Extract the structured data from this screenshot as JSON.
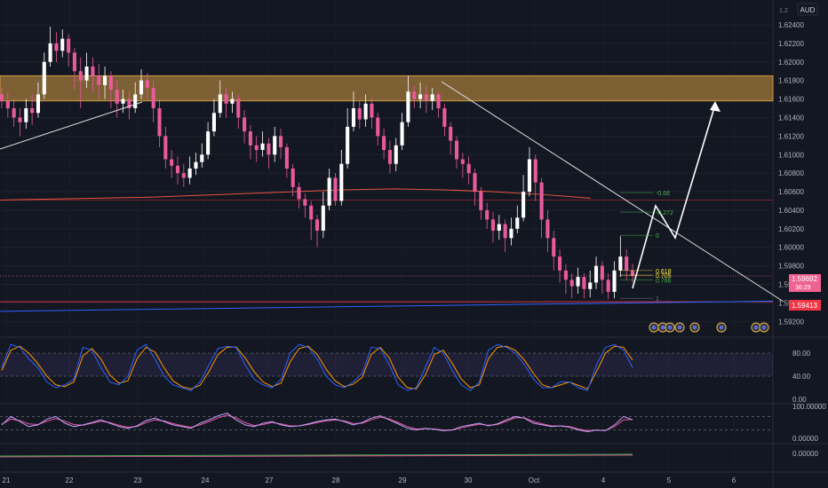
{
  "chart_data": {
    "type": "candlestick",
    "currency": "AUD",
    "price_scale": {
      "ylim": [
        1.5905,
        1.6262
      ],
      "ticks": [
        "1.62400",
        "1.62200",
        "1.62000",
        "1.61800",
        "1.61600",
        "1.61400",
        "1.61200",
        "1.61000",
        "1.60800",
        "1.60600",
        "1.60400",
        "1.60200",
        "1.60000",
        "1.59800",
        "1.59600",
        "1.59400",
        "1.59200"
      ],
      "top_label": "1.2"
    },
    "x_ticks": [
      "21",
      "22",
      "23",
      "24",
      "27",
      "28",
      "29",
      "30",
      "Oct",
      "4",
      "5",
      "6"
    ],
    "last_price": {
      "value": "1.59692",
      "countdown": "36:29",
      "color": "#f06292"
    },
    "support_label": {
      "value": "1.59413",
      "color": "#f23645"
    },
    "supply_zone": {
      "from": 1.6158,
      "to": 1.6185,
      "color": "#d39a42"
    },
    "moving_average": {
      "color": "#e9553f",
      "values": [
        1.6051,
        1.6052,
        1.6053,
        1.6054,
        1.6056,
        1.6058,
        1.606,
        1.6062,
        1.6063,
        1.6062,
        1.606,
        1.6057,
        1.6053
      ]
    },
    "fib_levels": [
      {
        "label": "-0.68",
        "price": 1.6059,
        "color": "#4caf50"
      },
      {
        "label": "-0.272",
        "price": 1.6038,
        "color": "#4caf50"
      },
      {
        "label": "0",
        "price": 1.6013,
        "color": "#4caf50"
      },
      {
        "label": "0.618",
        "price": 1.5975,
        "color": "#ffeb3b"
      },
      {
        "label": "0.705",
        "price": 1.597,
        "color": "#ffeb3b"
      },
      {
        "label": "0.786",
        "price": 1.5965,
        "color": "#4caf50"
      },
      {
        "label": "1",
        "price": 1.5945,
        "color": "#787b86"
      }
    ],
    "candles": [
      [
        1.6165,
        1.6158,
        1.6172,
        1.615
      ],
      [
        1.6158,
        1.615,
        1.6168,
        1.614
      ],
      [
        1.615,
        1.614,
        1.616,
        1.613
      ],
      [
        1.614,
        1.6135,
        1.615,
        1.612
      ],
      [
        1.6135,
        1.615,
        1.616,
        1.6128
      ],
      [
        1.615,
        1.6145,
        1.6165,
        1.6132
      ],
      [
        1.6145,
        1.6165,
        1.6178,
        1.614
      ],
      [
        1.6165,
        1.62,
        1.621,
        1.616
      ],
      [
        1.62,
        1.622,
        1.6238,
        1.6195
      ],
      [
        1.622,
        1.6212,
        1.6232,
        1.62
      ],
      [
        1.6212,
        1.6225,
        1.6235,
        1.6205
      ],
      [
        1.6225,
        1.621,
        1.623,
        1.6195
      ],
      [
        1.621,
        1.619,
        1.6215,
        1.617
      ],
      [
        1.619,
        1.618,
        1.6205,
        1.615
      ],
      [
        1.618,
        1.6195,
        1.621,
        1.6172
      ],
      [
        1.6195,
        1.6185,
        1.6205,
        1.6168
      ],
      [
        1.6185,
        1.6175,
        1.6198,
        1.616
      ],
      [
        1.6175,
        1.6185,
        1.6195,
        1.616
      ],
      [
        1.6185,
        1.617,
        1.619,
        1.615
      ],
      [
        1.617,
        1.6155,
        1.618,
        1.614
      ],
      [
        1.6155,
        1.616,
        1.617,
        1.6145
      ],
      [
        1.616,
        1.615,
        1.6168,
        1.6138
      ],
      [
        1.615,
        1.6165,
        1.6178,
        1.6145
      ],
      [
        1.6165,
        1.618,
        1.6192,
        1.616
      ],
      [
        1.618,
        1.6172,
        1.6188,
        1.616
      ],
      [
        1.6172,
        1.615,
        1.618,
        1.6135
      ],
      [
        1.615,
        1.612,
        1.616,
        1.6108
      ],
      [
        1.612,
        1.6095,
        1.613,
        1.6085
      ],
      [
        1.6095,
        1.6088,
        1.6105,
        1.6075
      ],
      [
        1.6088,
        1.608,
        1.6098,
        1.6068
      ],
      [
        1.608,
        1.6075,
        1.609,
        1.6065
      ],
      [
        1.6075,
        1.6085,
        1.6098,
        1.6068
      ],
      [
        1.6085,
        1.6092,
        1.6102,
        1.6078
      ],
      [
        1.6092,
        1.61,
        1.6112,
        1.6086
      ],
      [
        1.61,
        1.6125,
        1.6135,
        1.6095
      ],
      [
        1.6125,
        1.6145,
        1.616,
        1.612
      ],
      [
        1.6145,
        1.6165,
        1.618,
        1.614
      ],
      [
        1.6165,
        1.6155,
        1.6172,
        1.614
      ],
      [
        1.6155,
        1.616,
        1.6168,
        1.6145
      ],
      [
        1.616,
        1.614,
        1.6165,
        1.6128
      ],
      [
        1.614,
        1.6125,
        1.6148,
        1.6112
      ],
      [
        1.6125,
        1.611,
        1.6132,
        1.6095
      ],
      [
        1.611,
        1.6105,
        1.612,
        1.6092
      ],
      [
        1.6105,
        1.6112,
        1.6125,
        1.6098
      ],
      [
        1.6112,
        1.61,
        1.6118,
        1.6085
      ],
      [
        1.61,
        1.612,
        1.613,
        1.6092
      ],
      [
        1.612,
        1.6108,
        1.6128,
        1.6095
      ],
      [
        1.6108,
        1.6085,
        1.6112,
        1.6075
      ],
      [
        1.6085,
        1.6065,
        1.609,
        1.6055
      ],
      [
        1.6065,
        1.6052,
        1.607,
        1.6042
      ],
      [
        1.6052,
        1.6045,
        1.6058,
        1.6032
      ],
      [
        1.6045,
        1.603,
        1.605,
        1.6008
      ],
      [
        1.603,
        1.6018,
        1.6035,
        1.6
      ],
      [
        1.6018,
        1.6045,
        1.606,
        1.601
      ],
      [
        1.6045,
        1.6075,
        1.6085,
        1.604
      ],
      [
        1.6075,
        1.605,
        1.608,
        1.6045
      ],
      [
        1.605,
        1.609,
        1.6105,
        1.6045
      ],
      [
        1.609,
        1.613,
        1.615,
        1.6085
      ],
      [
        1.613,
        1.615,
        1.6168,
        1.6125
      ],
      [
        1.615,
        1.6138,
        1.6158,
        1.6128
      ],
      [
        1.6138,
        1.6155,
        1.6165,
        1.613
      ],
      [
        1.6155,
        1.614,
        1.6162,
        1.6128
      ],
      [
        1.614,
        1.612,
        1.6145,
        1.611
      ],
      [
        1.612,
        1.6105,
        1.6128,
        1.6095
      ],
      [
        1.6105,
        1.609,
        1.6115,
        1.608
      ],
      [
        1.609,
        1.611,
        1.6118,
        1.6082
      ],
      [
        1.611,
        1.6135,
        1.6145,
        1.6105
      ],
      [
        1.6135,
        1.6168,
        1.6185,
        1.613
      ],
      [
        1.6168,
        1.616,
        1.6175,
        1.615
      ],
      [
        1.616,
        1.6165,
        1.6178,
        1.615
      ],
      [
        1.6165,
        1.6158,
        1.6175,
        1.6145
      ],
      [
        1.6158,
        1.6165,
        1.6172,
        1.6148
      ],
      [
        1.6165,
        1.615,
        1.6168,
        1.614
      ],
      [
        1.615,
        1.613,
        1.6155,
        1.612
      ],
      [
        1.613,
        1.6115,
        1.6135,
        1.61
      ],
      [
        1.6115,
        1.6095,
        1.612,
        1.6085
      ],
      [
        1.6095,
        1.609,
        1.6102,
        1.6075
      ],
      [
        1.609,
        1.608,
        1.6098,
        1.6068
      ],
      [
        1.608,
        1.606,
        1.6085,
        1.6045
      ],
      [
        1.606,
        1.604,
        1.6065,
        1.603
      ],
      [
        1.604,
        1.603,
        1.6048,
        1.602
      ],
      [
        1.603,
        1.6018,
        1.6038,
        1.6005
      ],
      [
        1.6018,
        1.6025,
        1.6035,
        1.6008
      ],
      [
        1.6025,
        1.601,
        1.603,
        1.5995
      ],
      [
        1.601,
        1.602,
        1.6032,
        1.6002
      ],
      [
        1.602,
        1.6032,
        1.6045,
        1.6015
      ],
      [
        1.6032,
        1.606,
        1.6078,
        1.6028
      ],
      [
        1.606,
        1.6095,
        1.6108,
        1.6055
      ],
      [
        1.6095,
        1.607,
        1.61,
        1.605
      ],
      [
        1.607,
        1.603,
        1.6075,
        1.601
      ],
      [
        1.603,
        1.601,
        1.604,
        1.5995
      ],
      [
        1.601,
        1.599,
        1.6018,
        1.5975
      ],
      [
        1.599,
        1.5975,
        1.5998,
        1.5962
      ],
      [
        1.5975,
        1.5965,
        1.5982,
        1.595
      ],
      [
        1.5965,
        1.5958,
        1.5972,
        1.5945
      ],
      [
        1.5958,
        1.5968,
        1.5978,
        1.595
      ],
      [
        1.5968,
        1.5955,
        1.5972,
        1.5945
      ],
      [
        1.5955,
        1.5962,
        1.5975,
        1.5946
      ],
      [
        1.5962,
        1.598,
        1.599,
        1.5955
      ],
      [
        1.598,
        1.5965,
        1.5985,
        1.595
      ],
      [
        1.5965,
        1.5952,
        1.5972,
        1.5944
      ],
      [
        1.5952,
        1.5975,
        1.5985,
        1.5945
      ],
      [
        1.5975,
        1.599,
        1.6012,
        1.5968
      ],
      [
        1.599,
        1.5975,
        1.5998,
        1.5965
      ],
      [
        1.5975,
        1.5969,
        1.5982,
        1.5962
      ]
    ],
    "stoch_panel": {
      "ticks": [
        "80.00",
        "40.00",
        "0.00"
      ],
      "k": [
        55,
        95,
        90,
        70,
        55,
        30,
        20,
        25,
        35,
        90,
        85,
        55,
        30,
        25,
        40,
        85,
        95,
        70,
        40,
        25,
        20,
        15,
        30,
        60,
        88,
        92,
        90,
        60,
        35,
        25,
        20,
        35,
        80,
        95,
        90,
        70,
        40,
        25,
        20,
        30,
        45,
        90,
        88,
        60,
        25,
        15,
        20,
        55,
        90,
        80,
        50,
        25,
        15,
        30,
        85,
        95,
        90,
        80,
        60,
        35,
        20,
        20,
        30,
        30,
        20,
        15,
        60,
        90,
        95,
        85,
        55
      ],
      "d": [
        50,
        85,
        92,
        80,
        62,
        40,
        25,
        22,
        30,
        75,
        88,
        70,
        42,
        28,
        32,
        70,
        90,
        82,
        55,
        32,
        22,
        18,
        24,
        48,
        78,
        90,
        91,
        72,
        48,
        30,
        22,
        28,
        65,
        88,
        92,
        78,
        52,
        32,
        22,
        26,
        38,
        78,
        90,
        72,
        38,
        20,
        18,
        42,
        78,
        85,
        62,
        35,
        20,
        25,
        70,
        90,
        92,
        85,
        68,
        45,
        25,
        20,
        25,
        30,
        24,
        18,
        48,
        80,
        92,
        90,
        68
      ]
    },
    "rsi_panel": {
      "ticks": [
        "100.00000",
        "0.00000"
      ],
      "line": [
        45,
        70,
        55,
        40,
        45,
        62,
        70,
        50,
        40,
        45,
        52,
        60,
        50,
        40,
        35,
        42,
        58,
        65,
        55,
        45,
        40,
        35,
        50,
        60,
        72,
        80,
        60,
        45,
        40,
        50,
        55,
        45,
        40,
        42,
        48,
        55,
        60,
        62,
        55,
        45,
        52,
        65,
        72,
        60,
        48,
        35,
        30,
        35,
        32,
        28,
        30,
        40,
        45,
        50,
        42,
        48,
        60,
        70,
        65,
        50,
        45,
        40,
        42,
        38,
        30,
        25,
        30,
        28,
        45,
        70,
        60
      ],
      "signal": [
        47,
        62,
        58,
        48,
        46,
        56,
        64,
        56,
        46,
        44,
        50,
        56,
        52,
        44,
        38,
        40,
        52,
        60,
        57,
        49,
        43,
        38,
        45,
        55,
        66,
        74,
        66,
        52,
        43,
        46,
        52,
        48,
        42,
        42,
        46,
        52,
        57,
        60,
        57,
        49,
        50,
        60,
        68,
        63,
        52,
        40,
        33,
        34,
        33,
        30,
        30,
        36,
        42,
        47,
        44,
        46,
        56,
        66,
        66,
        55,
        48,
        42,
        42,
        40,
        33,
        28,
        29,
        29,
        40,
        60,
        62
      ]
    },
    "event_markers": [
      "event",
      "event",
      "event",
      "event",
      "event",
      "event",
      "event",
      "event"
    ]
  }
}
